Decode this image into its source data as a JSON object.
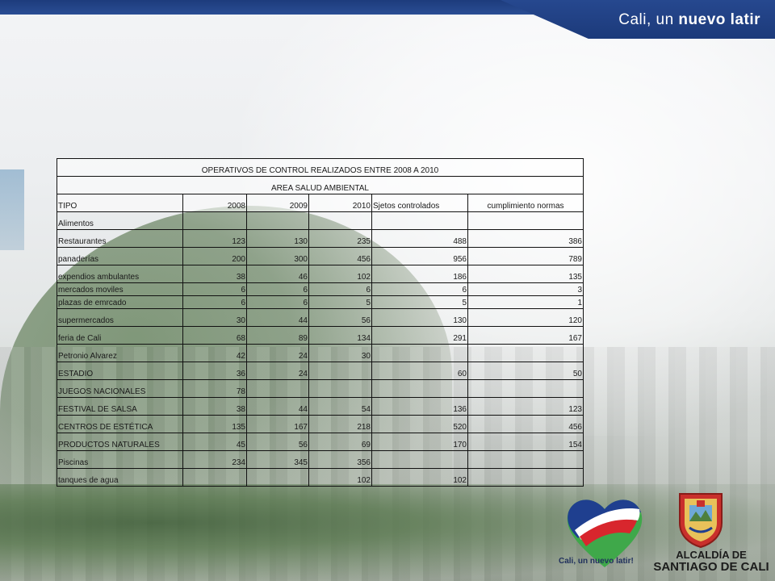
{
  "header": {
    "slogan_part1": "Cali, un ",
    "slogan_part2": "nuevo latir"
  },
  "table": {
    "title": "OPERATIVOS DE CONTROL REALIZADOS ENTRE 2008 A 2010",
    "subtitle": "AREA SALUD AMBIENTAL",
    "headers": [
      "TIPO",
      "2008",
      "2009",
      "2010",
      "Sjetos controlados",
      "cumplimiento normas"
    ],
    "rows": [
      {
        "tipo": "Alimentos",
        "y2008": "",
        "y2009": "",
        "y2010": "",
        "sujetos": "",
        "cumplimiento": ""
      },
      {
        "tipo": "Restaurantes",
        "y2008": "123",
        "y2009": "130",
        "y2010": "235",
        "sujetos": "488",
        "cumplimiento": "386"
      },
      {
        "tipo": "panaderías",
        "y2008": "200",
        "y2009": "300",
        "y2010": "456",
        "sujetos": "956",
        "cumplimiento": "789"
      },
      {
        "tipo": "expendios ambulantes",
        "y2008": "38",
        "y2009": "46",
        "y2010": "102",
        "sujetos": "186",
        "cumplimiento": "135"
      },
      {
        "tipo": "mercados moviles",
        "y2008": "6",
        "y2009": "6",
        "y2010": "6",
        "sujetos": "6",
        "cumplimiento": "3"
      },
      {
        "tipo": "plazas de emrcado",
        "y2008": "6",
        "y2009": "6",
        "y2010": "5",
        "sujetos": "5",
        "cumplimiento": "1"
      },
      {
        "tipo": "supermercados",
        "y2008": "30",
        "y2009": "44",
        "y2010": "56",
        "sujetos": "130",
        "cumplimiento": "120"
      },
      {
        "tipo": "feria de Cali",
        "y2008": "68",
        "y2009": "89",
        "y2010": "134",
        "sujetos": "291",
        "cumplimiento": "167"
      },
      {
        "tipo": "Petronio Alvarez",
        "y2008": "42",
        "y2009": "24",
        "y2010": "30",
        "sujetos": "",
        "cumplimiento": ""
      },
      {
        "tipo": "ESTADIO",
        "y2008": "36",
        "y2009": "24",
        "y2010": "",
        "sujetos": "60",
        "cumplimiento": "50"
      },
      {
        "tipo": "JUEGOS NACIONALES",
        "y2008": "78",
        "y2009": "",
        "y2010": "",
        "sujetos": "",
        "cumplimiento": ""
      },
      {
        "tipo": "FESTIVAL DE SALSA",
        "y2008": "38",
        "y2009": "44",
        "y2010": "54",
        "sujetos": "136",
        "cumplimiento": "123"
      },
      {
        "tipo": "CENTROS DE ESTÉTICA",
        "y2008": "135",
        "y2009": "167",
        "y2010": "218",
        "sujetos": "520",
        "cumplimiento": "456"
      },
      {
        "tipo": "PRODUCTOS NATURALES",
        "y2008": "45",
        "y2009": "56",
        "y2010": "69",
        "sujetos": "170",
        "cumplimiento": "154"
      },
      {
        "tipo": "Piscinas",
        "y2008": "234",
        "y2009": "345",
        "y2010": "356",
        "sujetos": "",
        "cumplimiento": ""
      },
      {
        "tipo": "tanques de agua",
        "y2008": "",
        "y2009": "",
        "y2010": "102",
        "sujetos": "102",
        "cumplimiento": ""
      }
    ]
  },
  "logos": {
    "heart_caption_part1": "Cali, un nuevo ",
    "heart_caption_part2": "latir!",
    "alcaldia_line1": "ALCALDÍA DE",
    "alcaldia_line2": "SANTIAGO DE CALI",
    "heart_colors": [
      "#1f3f8f",
      "#d8262d",
      "#3fa84a"
    ]
  }
}
